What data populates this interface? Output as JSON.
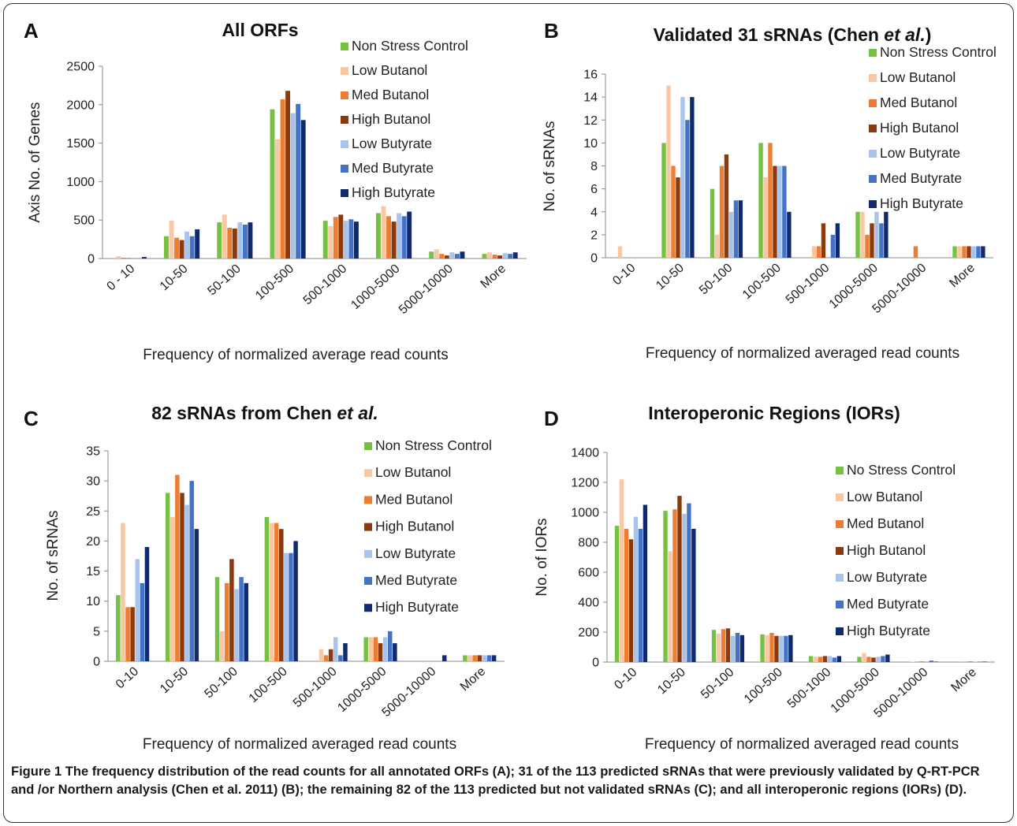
{
  "colors": [
    "#76c043",
    "#f9c7a4",
    "#ed7d31",
    "#8b3a0e",
    "#a9c4ea",
    "#4472c4",
    "#0f2a6e"
  ],
  "caption": {
    "label": "Figure 1",
    "text": "The frequency distribution of the read counts for all annotated ORFs (A); 31 of the 113 predicted sRNAs that were previously validated by Q-RT-PCR and /or Northern analysis (Chen et al. 2011) (B); the remaining 82 of the 113 predicted but not validated sRNAs (C); and all interoperonic regions (IORs) (D)."
  },
  "chart_data": [
    {
      "type": "bar",
      "panel": "A",
      "title": "All ORFs",
      "xlabel": "Frequency of normalized average read counts",
      "ylabel": "Axis No. of Genes",
      "ylim": [
        0,
        2500
      ],
      "yticks": [
        0,
        500,
        1000,
        1500,
        2000,
        2500
      ],
      "categories": [
        "0 - 10",
        "10-50",
        "50-100",
        "100-500",
        "500-1000",
        "1000-5000",
        "5000-10000",
        "More"
      ],
      "legend_position": "top-right",
      "series": [
        {
          "name": "Non Stress Control",
          "values": [
            5,
            290,
            470,
            1940,
            490,
            590,
            90,
            60
          ]
        },
        {
          "name": "Low Butanol",
          "values": [
            30,
            490,
            570,
            1550,
            420,
            680,
            120,
            80
          ]
        },
        {
          "name": "Med Butanol",
          "values": [
            10,
            270,
            400,
            2070,
            540,
            550,
            60,
            50
          ]
        },
        {
          "name": "High Butanol",
          "values": [
            5,
            240,
            390,
            2180,
            570,
            480,
            40,
            40
          ]
        },
        {
          "name": "Low Butyrate",
          "values": [
            10,
            350,
            470,
            1890,
            490,
            590,
            80,
            70
          ]
        },
        {
          "name": "Med Butyrate",
          "values": [
            5,
            290,
            440,
            2010,
            510,
            550,
            60,
            60
          ]
        },
        {
          "name": "High Butyrate",
          "values": [
            20,
            380,
            470,
            1800,
            480,
            610,
            90,
            80
          ]
        }
      ]
    },
    {
      "type": "bar",
      "panel": "B",
      "title": "Validated 31 sRNAs (Chen et al.)",
      "xlabel": "Frequency of normalized averaged read counts",
      "ylabel": "No. of sRNAs",
      "ylim": [
        0,
        16
      ],
      "yticks": [
        0,
        2,
        4,
        6,
        8,
        10,
        12,
        14,
        16
      ],
      "categories": [
        "0-10",
        "10-50",
        "50-100",
        "100-500",
        "500-1000",
        "1000-5000",
        "5000-10000",
        "More"
      ],
      "legend_position": "top-right",
      "series": [
        {
          "name": "Non Stress Control",
          "values": [
            0,
            10,
            6,
            10,
            0,
            4,
            0,
            1
          ]
        },
        {
          "name": "Low Butanol",
          "values": [
            1,
            15,
            2,
            7,
            1,
            4,
            0,
            1
          ]
        },
        {
          "name": "Med Butanol",
          "values": [
            0,
            8,
            8,
            10,
            1,
            2,
            1,
            1
          ]
        },
        {
          "name": "High Butanol",
          "values": [
            0,
            7,
            9,
            8,
            3,
            3,
            0,
            1
          ]
        },
        {
          "name": "Low Butyrate",
          "values": [
            0,
            14,
            4,
            8,
            0,
            4,
            0,
            1
          ]
        },
        {
          "name": "Med Butyrate",
          "values": [
            0,
            12,
            5,
            8,
            2,
            3,
            0,
            1
          ]
        },
        {
          "name": "High Butyrate",
          "values": [
            0,
            14,
            5,
            4,
            3,
            4,
            0,
            1
          ]
        }
      ]
    },
    {
      "type": "bar",
      "panel": "C",
      "title": "82 sRNAs from Chen et al.",
      "xlabel": "Frequency of normalized averaged read counts",
      "ylabel": "No. of sRNAs",
      "ylim": [
        0,
        35
      ],
      "yticks": [
        0,
        5,
        10,
        15,
        20,
        25,
        30,
        35
      ],
      "categories": [
        "0-10",
        "10-50",
        "50-100",
        "100-500",
        "500-1000",
        "1000-5000",
        "5000-10000",
        "More"
      ],
      "legend_position": "top-right",
      "series": [
        {
          "name": "Non Stress Control",
          "values": [
            11,
            28,
            14,
            24,
            0,
            4,
            0,
            1
          ]
        },
        {
          "name": "Low Butanol",
          "values": [
            23,
            24,
            5,
            23,
            2,
            4,
            0,
            1
          ]
        },
        {
          "name": "Med Butanol",
          "values": [
            9,
            31,
            13,
            23,
            1,
            4,
            0,
            1
          ]
        },
        {
          "name": "High Butanol",
          "values": [
            9,
            28,
            17,
            22,
            2,
            3,
            0,
            1
          ]
        },
        {
          "name": "Low Butyrate",
          "values": [
            17,
            26,
            12,
            18,
            4,
            4,
            0,
            1
          ]
        },
        {
          "name": "Med Butyrate",
          "values": [
            13,
            30,
            14,
            18,
            1,
            5,
            0,
            1
          ]
        },
        {
          "name": "High Butyrate",
          "values": [
            19,
            22,
            13,
            20,
            3,
            3,
            1,
            1
          ]
        }
      ]
    },
    {
      "type": "bar",
      "panel": "D",
      "title": "Interoperonic Regions (IORs)",
      "xlabel": "Frequency of normalized averaged read counts",
      "ylabel": "No. of IORs",
      "ylim": [
        0,
        1400
      ],
      "yticks": [
        0,
        200,
        400,
        600,
        800,
        1000,
        1200,
        1400
      ],
      "categories": [
        "0-10",
        "10-50",
        "50-100",
        "100-500",
        "500-1000",
        "1000-5000",
        "5000-10000",
        "More"
      ],
      "legend_position": "top-right",
      "series": [
        {
          "name": "No Stress Control",
          "values": [
            910,
            1010,
            215,
            185,
            40,
            35,
            3,
            3
          ]
        },
        {
          "name": "Low Butanol",
          "values": [
            1220,
            740,
            190,
            180,
            35,
            60,
            3,
            5
          ]
        },
        {
          "name": "Med Butanol",
          "values": [
            890,
            1020,
            220,
            195,
            35,
            35,
            3,
            3
          ]
        },
        {
          "name": "High Butanol",
          "values": [
            820,
            1110,
            225,
            175,
            40,
            30,
            3,
            3
          ]
        },
        {
          "name": "Low Butyrate",
          "values": [
            970,
            990,
            175,
            175,
            40,
            35,
            5,
            3
          ]
        },
        {
          "name": "Med Butyrate",
          "values": [
            890,
            1060,
            195,
            175,
            30,
            40,
            10,
            3
          ]
        },
        {
          "name": "High Butyrate",
          "values": [
            1050,
            890,
            180,
            180,
            40,
            50,
            3,
            3
          ]
        }
      ]
    }
  ]
}
